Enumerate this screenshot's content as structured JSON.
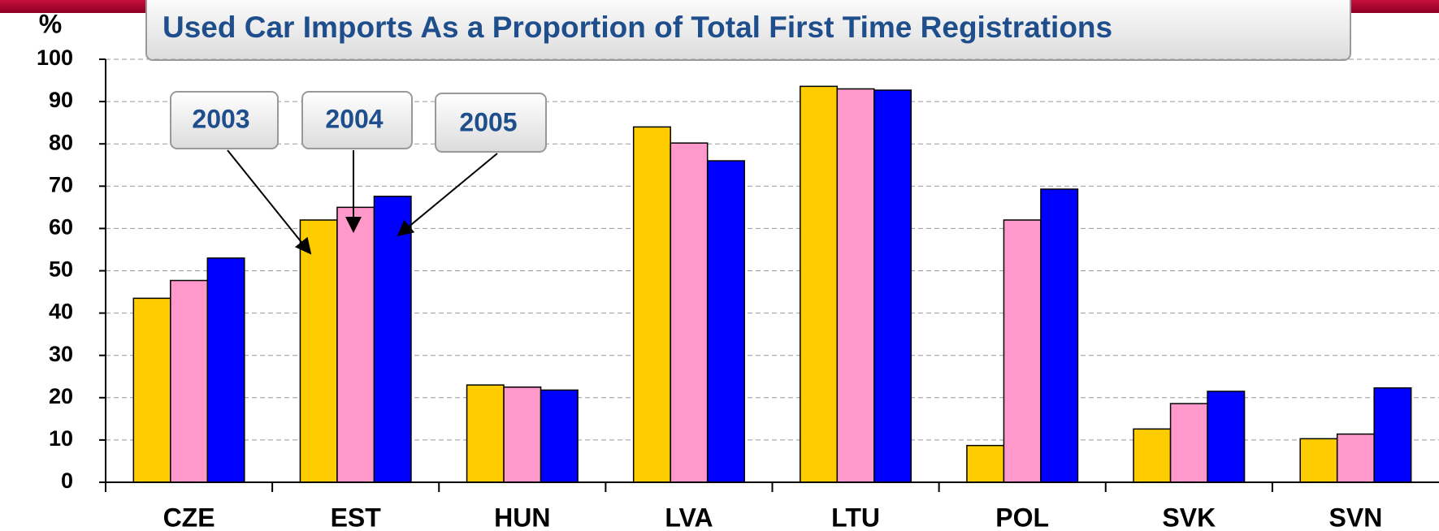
{
  "chart_data": {
    "type": "bar",
    "title": "Used Car Imports As a Proportion of Total First Time Registrations",
    "y_label": "%",
    "categories": [
      "CZE",
      "EST",
      "HUN",
      "LVA",
      "LTU",
      "POL",
      "SVK",
      "SVN"
    ],
    "series": [
      {
        "name": "2003",
        "color": "#ffcc00",
        "values": [
          43.5,
          62,
          23,
          84,
          93.6,
          8.7,
          12.6,
          10.3
        ]
      },
      {
        "name": "2004",
        "color": "#ff99cc",
        "values": [
          47.7,
          65,
          22.5,
          80.2,
          93,
          62,
          18.6,
          11.4
        ]
      },
      {
        "name": "2005",
        "color": "#0000ff",
        "values": [
          53,
          67.6,
          21.8,
          76,
          92.7,
          69.3,
          21.5,
          22.3
        ]
      }
    ],
    "ylim": [
      0,
      100
    ],
    "yticks": [
      0,
      10,
      20,
      30,
      40,
      50,
      60,
      70,
      80,
      90,
      100
    ],
    "grid": true
  }
}
